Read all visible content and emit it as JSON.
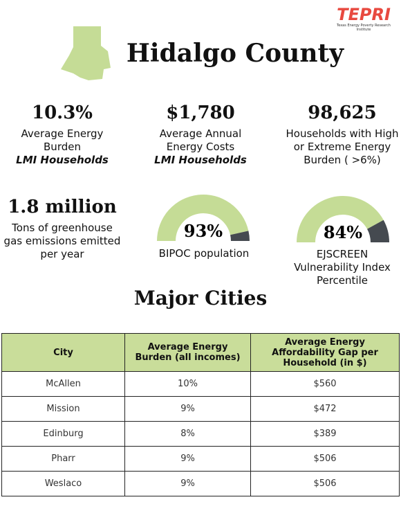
{
  "logo": {
    "name": "TEPRI",
    "tagline": "Texas Energy Poverty Research Institute"
  },
  "title": "Hidalgo County",
  "stats": [
    {
      "value": "10.3%",
      "description": "Average Energy Burden",
      "emphasis": "LMI Households"
    },
    {
      "value": "$1,780",
      "description": "Average Annual Energy Costs",
      "emphasis": "LMI Households"
    },
    {
      "value": "98,625",
      "description": "Households with High or Extreme Energy Burden ( >6%)"
    },
    {
      "value": "1.8 million",
      "description": "Tons of greenhouse gas emissions emitted per year"
    }
  ],
  "gauge_range": [
    0,
    100
  ],
  "gauges": [
    {
      "value": 93,
      "label": "93%",
      "caption": "BIPOC population"
    },
    {
      "value": 84,
      "label": "84%",
      "caption": "EJSCREEN Vulnerability Index Percentile"
    }
  ],
  "section_title": "Major Cities",
  "table": {
    "header": [
      "City",
      "Average Energy Burden (all incomes)",
      "Average Energy Affordability Gap per Household (in $)"
    ],
    "rows": [
      [
        "McAllen",
        "10%",
        "$560"
      ],
      [
        "Mission",
        "9%",
        "$472"
      ],
      [
        "Edinburg",
        "8%",
        "$389"
      ],
      [
        "Pharr",
        "9%",
        "$506"
      ],
      [
        "Weslaco",
        "9%",
        "$506"
      ]
    ]
  }
}
